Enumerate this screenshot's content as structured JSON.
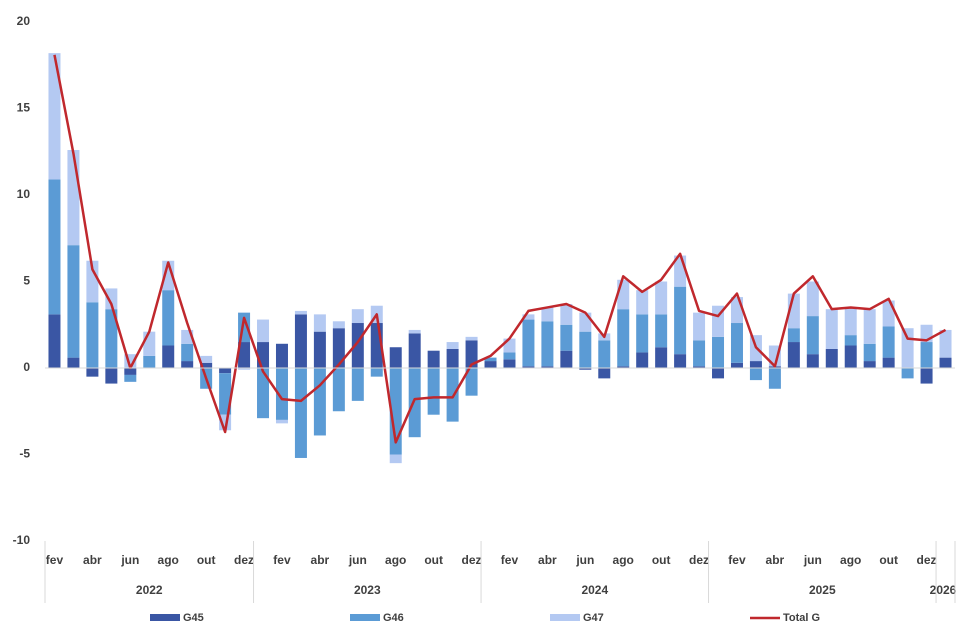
{
  "chart_data": {
    "type": "stacked-bar-line",
    "categories": [
      "fev",
      null,
      "abr",
      null,
      "jun",
      null,
      "ago",
      null,
      "out",
      null,
      "dez",
      null,
      "fev",
      null,
      "abr",
      null,
      "jun",
      null,
      "ago",
      null,
      "out",
      null,
      "dez",
      null,
      "fev",
      null,
      "abr",
      null,
      "jun",
      null,
      "ago",
      null,
      "out",
      null,
      "dez",
      null,
      "fev",
      null,
      "abr",
      null,
      "jun",
      null,
      "ago",
      null,
      "out",
      null,
      "dez",
      null
    ],
    "years": [
      "2022",
      "2022",
      "2022",
      "2022",
      "2022",
      "2022",
      "2022",
      "2022",
      "2022",
      "2022",
      "2022",
      "2023",
      "2023",
      "2023",
      "2023",
      "2023",
      "2023",
      "2023",
      "2023",
      "2023",
      "2023",
      "2023",
      "2023",
      "2024",
      "2024",
      "2024",
      "2024",
      "2024",
      "2024",
      "2024",
      "2024",
      "2024",
      "2024",
      "2024",
      "2024",
      "2025",
      "2025",
      "2025",
      "2025",
      "2025",
      "2025",
      "2025",
      "2025",
      "2025",
      "2025",
      "2025",
      "2025",
      "2026"
    ],
    "series": [
      {
        "name": "G45",
        "kind": "bar",
        "color": "#3a56a4",
        "values": [
          3.1,
          0.6,
          -0.5,
          -0.9,
          -0.4,
          0,
          1.3,
          0.4,
          0.3,
          -0.3,
          1.5,
          1.5,
          1.4,
          3.1,
          2.1,
          2.3,
          2.6,
          2.6,
          1.2,
          2.0,
          1.0,
          1.1,
          1.6,
          0.4,
          0.5,
          0.1,
          0.1,
          1.0,
          -0.1,
          -0.6,
          0.1,
          0.9,
          1.2,
          0.8,
          0.1,
          -0.6,
          0.3,
          0.4,
          0.1,
          1.5,
          0.8,
          1.1,
          1.3,
          0.4,
          0.6,
          0,
          -0.9,
          0.6
        ]
      },
      {
        "name": "G46",
        "kind": "bar",
        "color": "#5b9bd5",
        "values": [
          7.8,
          6.5,
          3.8,
          3.4,
          -0.4,
          0.7,
          3.2,
          1.0,
          -1.2,
          -2.4,
          1.7,
          -2.9,
          -3.0,
          -5.2,
          -3.9,
          -2.5,
          -1.9,
          -0.5,
          -5.0,
          -4.0,
          -2.7,
          -3.1,
          -1.6,
          0.2,
          0.4,
          2.7,
          2.6,
          1.5,
          2.1,
          1.6,
          3.3,
          2.2,
          1.9,
          3.9,
          1.5,
          1.8,
          2.3,
          -0.7,
          -1.2,
          0.8,
          2.2,
          0,
          0.6,
          1.0,
          1.8,
          -0.6,
          1.5,
          0
        ]
      },
      {
        "name": "G47",
        "kind": "bar",
        "color": "#b4c9f2",
        "values": [
          7.3,
          5.5,
          2.4,
          1.2,
          0.8,
          1.4,
          1.7,
          0.8,
          0.4,
          -0.9,
          -0.1,
          1.3,
          -0.2,
          0.2,
          1.0,
          0.4,
          0.8,
          1.0,
          -0.5,
          0.2,
          0,
          0.4,
          0.2,
          0,
          0.8,
          0.3,
          0.8,
          1.2,
          1.1,
          0.4,
          1.7,
          1.4,
          1.9,
          1.8,
          1.6,
          1.8,
          1.5,
          1.5,
          1.2,
          2.0,
          2.0,
          2.3,
          1.6,
          2.0,
          1.5,
          2.3,
          1.0,
          1.6
        ]
      },
      {
        "name": "Total G",
        "kind": "line",
        "color": "#c0282d",
        "values": [
          18.1,
          12.4,
          5.7,
          3.7,
          0.0,
          2.1,
          6.1,
          2.6,
          -0.6,
          -3.7,
          2.9,
          -0.2,
          -1.8,
          -1.9,
          -1.0,
          0.2,
          1.5,
          3.1,
          -4.3,
          -1.8,
          -1.7,
          -1.7,
          0.2,
          0.7,
          1.7,
          3.3,
          3.5,
          3.7,
          3.2,
          1.8,
          5.3,
          4.4,
          5.1,
          6.6,
          3.3,
          3.0,
          4.3,
          1.2,
          0.1,
          4.3,
          5.3,
          3.4,
          3.5,
          3.4,
          4.0,
          1.7,
          1.6,
          2.2
        ]
      }
    ],
    "ylim": [
      -10,
      20
    ],
    "yticks": [
      -10,
      -5,
      0,
      5,
      10,
      15,
      20
    ],
    "grid": false,
    "legend": "bottom"
  }
}
